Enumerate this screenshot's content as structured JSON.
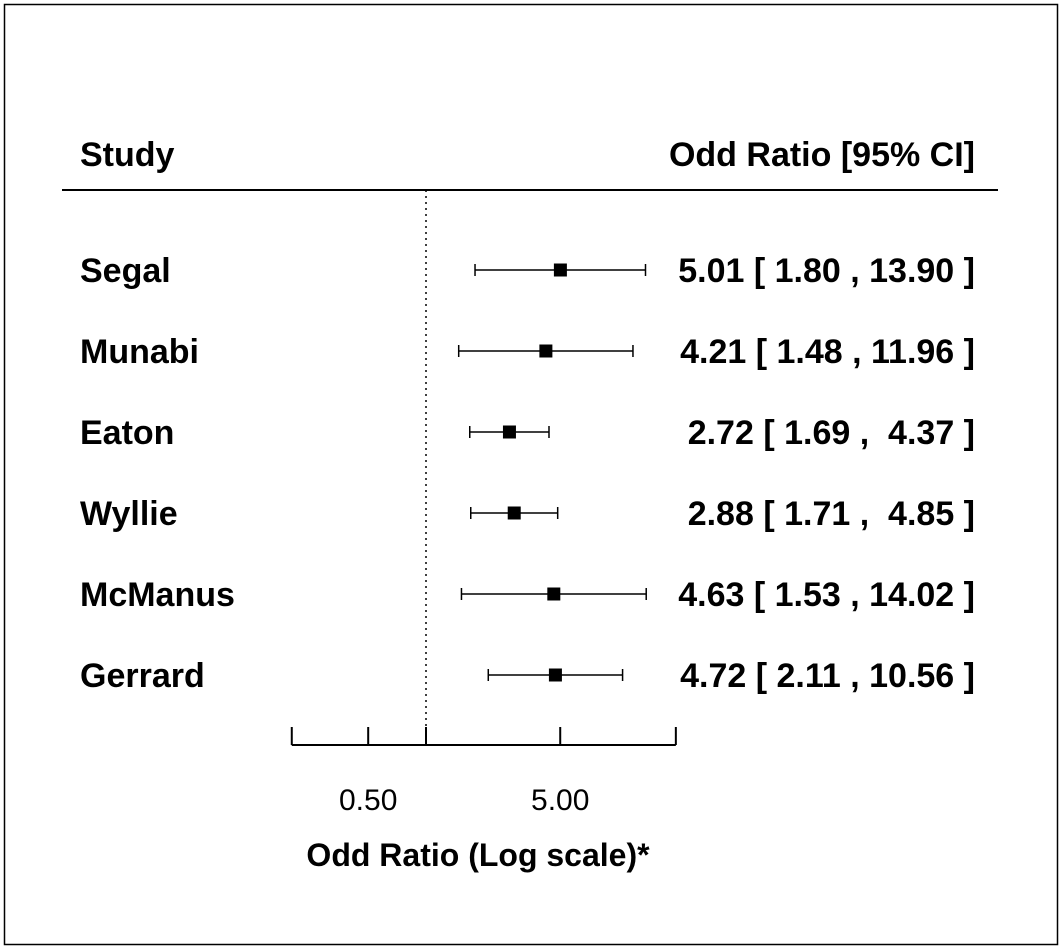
{
  "chart_data": {
    "type": "forest",
    "header": {
      "left": "Study",
      "right": "Odd Ratio [95% CI]"
    },
    "xlabel": "Odd Ratio (Log scale)*",
    "x_scale": "log",
    "reference_line": 1.0,
    "ticks": [
      0.5,
      5.0
    ],
    "tick_labels": [
      "0.50",
      "5.00"
    ],
    "xlim": [
      0.2,
      20.0
    ],
    "studies": [
      {
        "name": "Segal",
        "or": 5.01,
        "lower": 1.8,
        "upper": 13.9,
        "text": "5.01 [ 1.80 , 13.90 ]"
      },
      {
        "name": "Munabi",
        "or": 4.21,
        "lower": 1.48,
        "upper": 11.96,
        "text": "4.21 [ 1.48 , 11.96 ]"
      },
      {
        "name": "Eaton",
        "or": 2.72,
        "lower": 1.69,
        "upper": 4.37,
        "text": "2.72 [ 1.69 ,  4.37 ]"
      },
      {
        "name": "Wyllie",
        "or": 2.88,
        "lower": 1.71,
        "upper": 4.85,
        "text": "2.88 [ 1.71 ,  4.85 ]"
      },
      {
        "name": "McManus",
        "or": 4.63,
        "lower": 1.53,
        "upper": 14.02,
        "text": "4.63 [ 1.53 , 14.02 ]"
      },
      {
        "name": "Gerrard",
        "or": 4.72,
        "lower": 2.11,
        "upper": 10.56,
        "text": "4.72 [ 2.11 , 10.56 ]"
      }
    ]
  }
}
